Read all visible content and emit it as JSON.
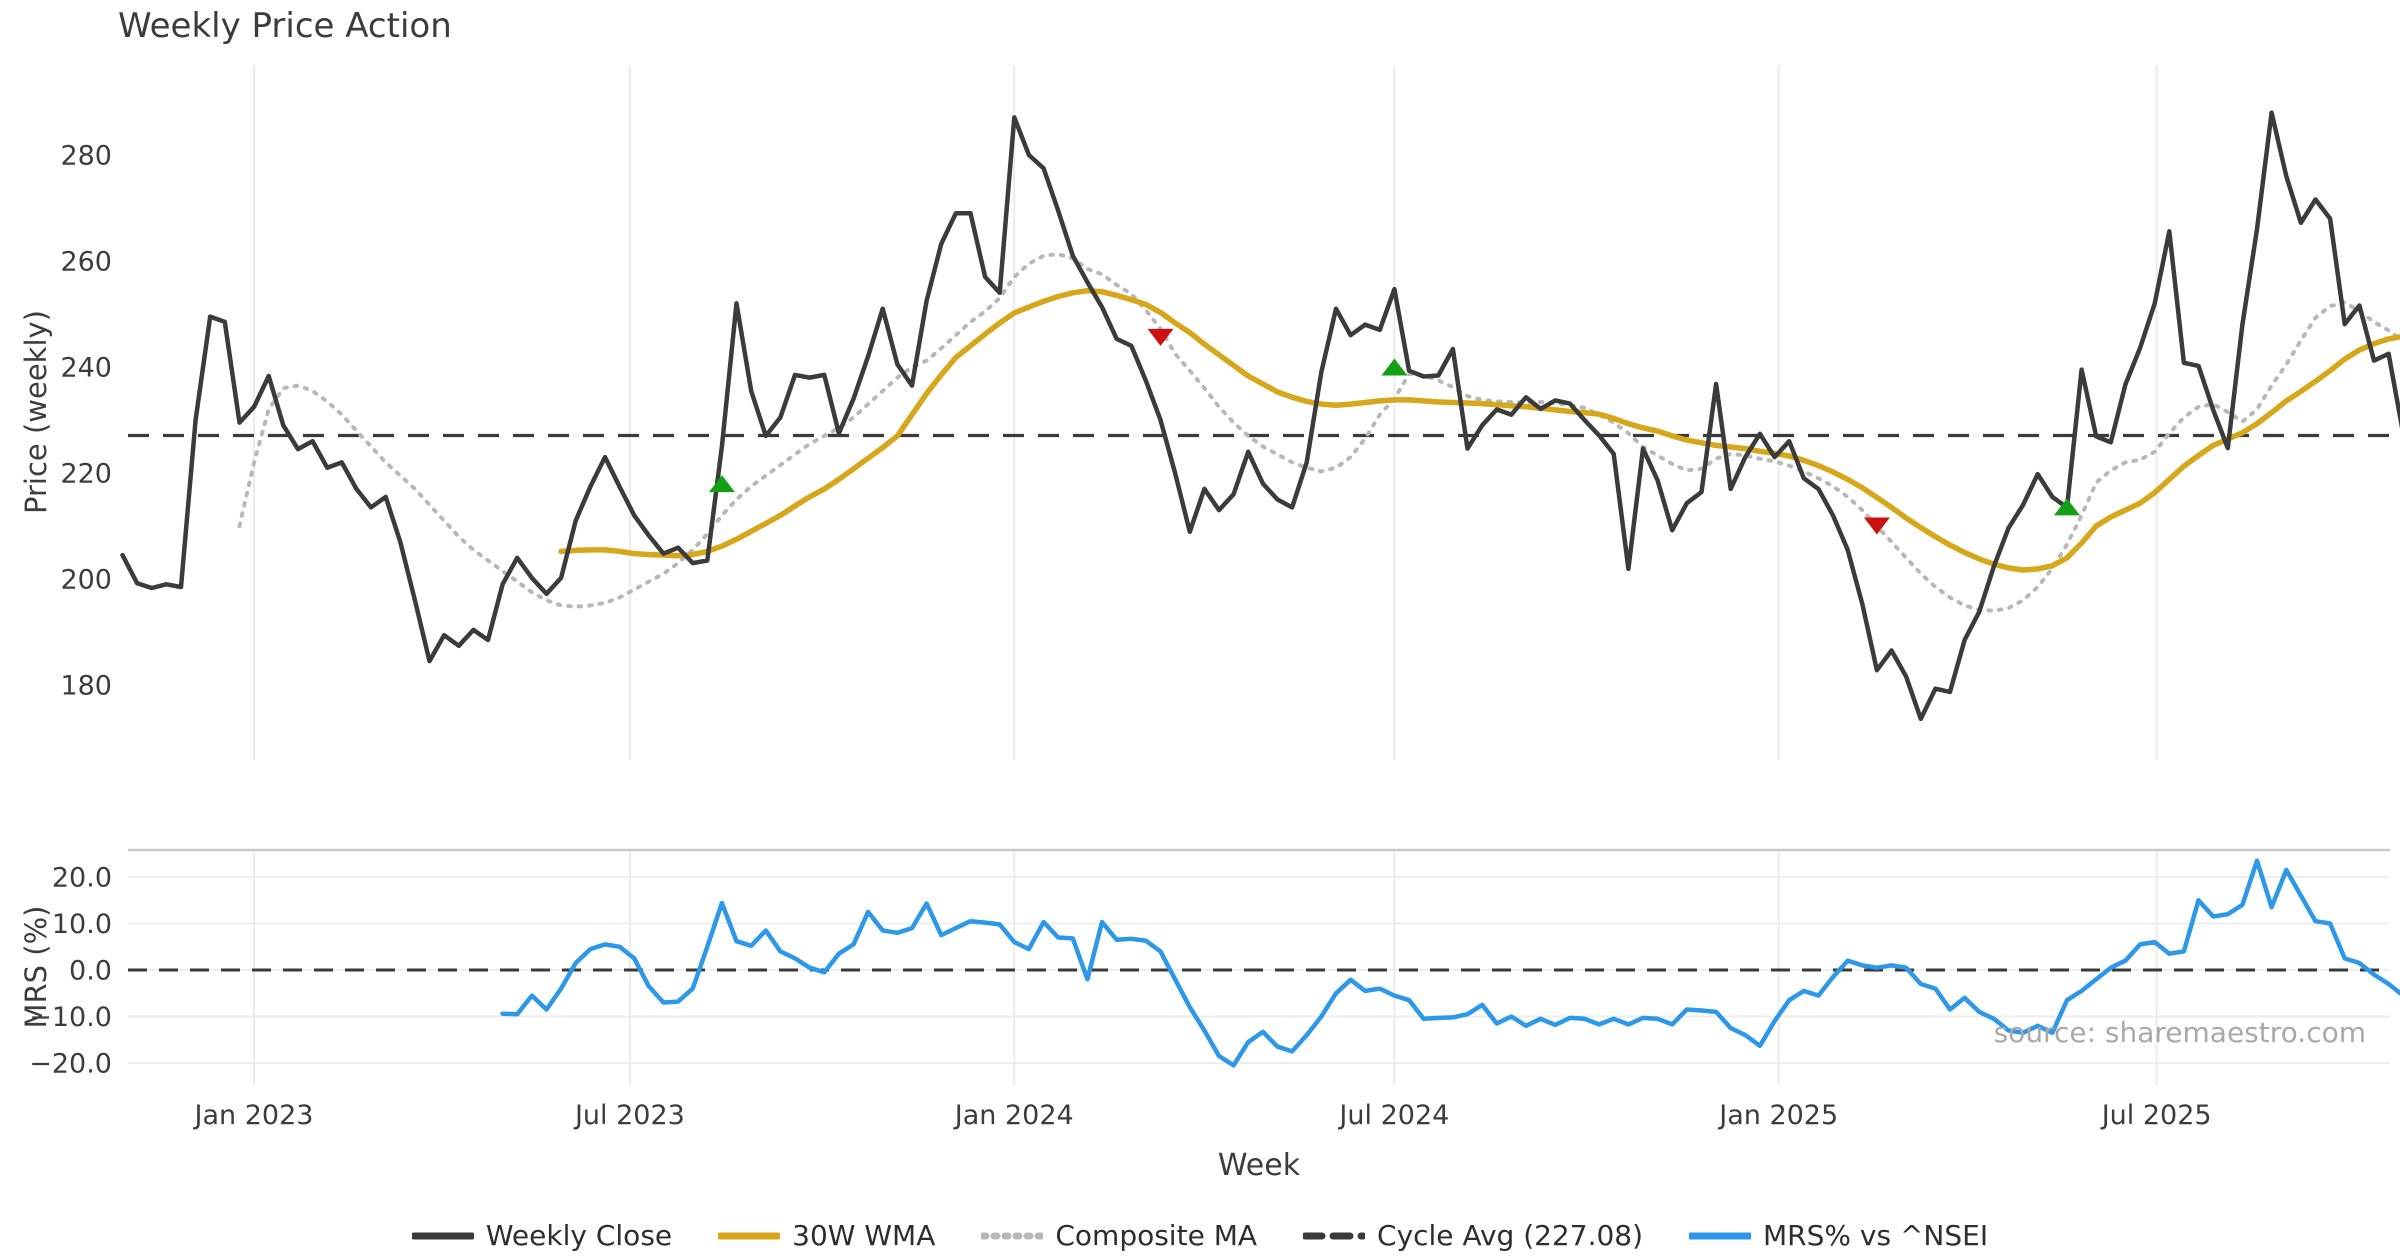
{
  "title": "Weekly Price Action",
  "source": "source: sharemaestro.com",
  "colors": {
    "close": "#3b3b3b",
    "wma": "#d6a61b",
    "composite": "#b8b8b8",
    "cycle": "#3a3a3a",
    "mrs": "#2d97e8",
    "buy": "#14a014",
    "sell": "#cc1111",
    "grid": "#ebebeb",
    "spine": "#c9c9c9",
    "tick": "#3c3c3c"
  },
  "axes": {
    "price": {
      "ylabel": "Price (weekly)",
      "yticks": [
        {
          "v": 180,
          "label": "180"
        },
        {
          "v": 200,
          "label": "200"
        },
        {
          "v": 220,
          "label": "220"
        },
        {
          "v": 240,
          "label": "240"
        },
        {
          "v": 260,
          "label": "260"
        },
        {
          "v": 280,
          "label": "280"
        }
      ]
    },
    "mrs": {
      "ylabel": "MRS (%)",
      "yticks": [
        {
          "v": 20,
          "label": "20.0"
        },
        {
          "v": 10,
          "label": "10.0"
        },
        {
          "v": 0,
          "label": "0.0"
        },
        {
          "v": -10,
          "label": "−10.0"
        },
        {
          "v": -20,
          "label": "−20.0"
        }
      ]
    },
    "x": {
      "label": "Week",
      "ticks": [
        {
          "label": "Jan 2023",
          "week": 0
        },
        {
          "label": "Jul 2023",
          "week": 25.71
        },
        {
          "label": "Jan 2024",
          "week": 52.0
        },
        {
          "label": "Jul 2024",
          "week": 78.0
        },
        {
          "label": "Jan 2025",
          "week": 104.29
        },
        {
          "label": "Jul 2025",
          "week": 130.14
        }
      ]
    }
  },
  "legend": [
    {
      "label": "Weekly Close",
      "swatch": "solid",
      "color": "#3b3b3b"
    },
    {
      "label": "30W WMA",
      "swatch": "solid",
      "color": "#d6a61b"
    },
    {
      "label": "Composite MA",
      "swatch": "dotted",
      "color": "#b8b8b8"
    },
    {
      "label": "Cycle Avg (227.08)",
      "swatch": "dashed",
      "color": "#3a3a3a"
    },
    {
      "label": "MRS% vs ^NSEI",
      "swatch": "solid",
      "color": "#2d97e8"
    }
  ],
  "chart_data": [
    {
      "type": "line",
      "panel": "price",
      "ylabel": "Price (weekly)",
      "ylim": [
        166,
        297
      ],
      "yticks": [
        180,
        200,
        220,
        240,
        260,
        280
      ],
      "x_axis": {
        "label": "Week",
        "start_date": "2022-10-31",
        "step_days": 7,
        "tick_labels": [
          "Jan 2023",
          "Jul 2023",
          "Jan 2024",
          "Jul 2024",
          "Jan 2025",
          "Jul 2025"
        ]
      },
      "cycle_avg": 227.08,
      "series": [
        {
          "name": "Weekly Close",
          "style": "solid",
          "color": "#3b3b3b",
          "start_index": 0,
          "values": [
            204.5,
            199.2,
            198.3,
            199.0,
            198.5,
            230.0,
            249.5,
            248.5,
            229.5,
            232.5,
            238.3,
            229.0,
            224.5,
            226.0,
            221.0,
            222.0,
            217.0,
            213.5,
            215.5,
            207.0,
            196.0,
            184.5,
            189.4,
            187.4,
            190.4,
            188.5,
            199.0,
            204.0,
            200.2,
            197.2,
            200.2,
            211.0,
            217.4,
            223.0,
            217.4,
            212.0,
            208.2,
            204.8,
            205.9,
            203.0,
            203.5,
            225.0,
            252.0,
            235.5,
            227.0,
            230.5,
            238.5,
            238.0,
            238.5,
            227.5,
            234.0,
            242.0,
            251.0,
            240.5,
            236.5,
            252.5,
            263.2,
            269.0,
            269.0,
            257.0,
            254.0,
            287.1,
            280.0,
            277.5,
            269.5,
            261.0,
            256.0,
            251.3,
            245.3,
            244.0,
            237.4,
            230.0,
            220.0,
            208.9,
            217.0,
            213.0,
            216.0,
            224.0,
            218.0,
            215.0,
            213.5,
            222.0,
            239.0,
            251.0,
            246.0,
            248.0,
            247.0,
            254.7,
            239.3,
            238.2,
            238.4,
            243.4,
            224.6,
            229.0,
            232.0,
            231.0,
            234.3,
            232.1,
            233.7,
            233.1,
            230.0,
            227.1,
            223.6,
            201.9,
            224.6,
            218.6,
            209.2,
            214.3,
            216.4,
            236.8,
            217.0,
            223.0,
            227.4,
            223.0,
            226.0,
            219.0,
            217.0,
            212.0,
            205.5,
            195.3,
            182.8,
            186.5,
            181.6,
            173.6,
            179.3,
            178.7,
            188.5,
            193.8,
            202.4,
            209.6,
            214.0,
            219.8,
            215.5,
            213.5,
            239.5,
            226.9,
            225.8,
            236.7,
            243.6,
            252.0,
            265.6,
            240.8,
            240.2,
            231.9,
            224.7,
            248.0,
            266.0,
            288.0,
            276.0,
            267.2,
            271.6,
            268.0,
            248.1,
            251.6,
            241.2,
            242.5,
            227.4
          ]
        },
        {
          "name": "30W WMA",
          "style": "solid",
          "color": "#d6a61b",
          "start_index": 30,
          "values": [
            205.2,
            205.4,
            205.5,
            205.5,
            205.2,
            204.8,
            204.6,
            204.5,
            204.4,
            204.6,
            205.2,
            206.2,
            207.5,
            209.0,
            210.5,
            212.0,
            213.8,
            215.5,
            217.0,
            218.8,
            220.8,
            222.8,
            224.8,
            227.0,
            231.0,
            235.0,
            238.5,
            241.8,
            244.0,
            246.2,
            248.3,
            250.2,
            251.3,
            252.4,
            253.3,
            254.0,
            254.4,
            254.2,
            253.5,
            252.7,
            251.8,
            250.3,
            248.3,
            246.5,
            244.3,
            242.3,
            240.3,
            238.3,
            236.8,
            235.3,
            234.3,
            233.5,
            233.0,
            232.8,
            233.0,
            233.3,
            233.6,
            233.8,
            233.8,
            233.6,
            233.4,
            233.3,
            233.2,
            233.1,
            232.9,
            232.7,
            232.5,
            232.2,
            231.9,
            231.6,
            231.4,
            231.1,
            230.3,
            229.3,
            228.5,
            227.9,
            227.0,
            226.2,
            225.7,
            225.2,
            224.9,
            224.6,
            224.1,
            223.7,
            223.2,
            222.4,
            221.4,
            220.2,
            218.8,
            217.2,
            215.4,
            213.5,
            211.5,
            209.7,
            208.0,
            206.4,
            205.0,
            203.8,
            202.8,
            202.1,
            201.7,
            201.9,
            202.5,
            204.0,
            206.8,
            210.0,
            211.7,
            213.0,
            214.3,
            216.3,
            218.8,
            221.3,
            223.3,
            225.2,
            226.4,
            227.6,
            229.3,
            231.4,
            233.6,
            235.4,
            237.3,
            239.3,
            241.5,
            243.2,
            244.4,
            245.3,
            245.8
          ]
        },
        {
          "name": "Composite MA",
          "style": "dotted",
          "color": "#b8b8b8",
          "start_index": 8,
          "values": [
            210.0,
            222.0,
            232.0,
            236.0,
            236.5,
            235.5,
            233.5,
            231.0,
            228.0,
            225.0,
            222.0,
            219.5,
            217.0,
            214.0,
            211.0,
            208.0,
            205.5,
            203.5,
            201.5,
            199.5,
            197.5,
            196.0,
            195.0,
            194.8,
            195.0,
            195.5,
            196.5,
            198.0,
            199.5,
            201.0,
            203.0,
            205.5,
            208.5,
            212.0,
            215.0,
            217.5,
            219.5,
            221.5,
            223.5,
            225.5,
            227.0,
            228.5,
            230.5,
            233.0,
            235.5,
            238.0,
            240.0,
            241.2,
            243.5,
            246.0,
            248.5,
            250.5,
            253.0,
            257.0,
            259.5,
            261.0,
            261.3,
            260.5,
            258.5,
            257.5,
            255.5,
            253.8,
            250.7,
            247.2,
            242.5,
            239.3,
            236.0,
            232.5,
            229.5,
            227.0,
            225.0,
            223.5,
            222.0,
            221.0,
            220.3,
            221.0,
            223.0,
            226.5,
            231.0,
            234.0,
            238.7,
            238.4,
            237.5,
            236.2,
            234.5,
            233.8,
            233.5,
            233.4,
            233.3,
            233.4,
            233.2,
            232.8,
            232.3,
            231.0,
            229.5,
            227.5,
            224.9,
            223.3,
            221.7,
            220.5,
            220.8,
            222.7,
            223.6,
            223.3,
            222.7,
            222.2,
            221.4,
            220.3,
            219.0,
            217.5,
            215.5,
            213.0,
            210.0,
            207.0,
            204.0,
            201.0,
            198.5,
            196.5,
            195.0,
            194.2,
            194.0,
            194.5,
            196.0,
            198.5,
            202.0,
            206.5,
            212.0,
            218.2,
            220.5,
            222.0,
            222.5,
            224.0,
            227.5,
            230.5,
            232.5,
            233.0,
            231.5,
            229.7,
            232.0,
            236.5,
            240.5,
            245.0,
            249.3,
            251.5,
            252.2,
            250.5,
            248.5,
            246.9,
            244.8,
            243.4
          ]
        },
        {
          "name": "Cycle Avg (227.08)",
          "style": "dashed",
          "color": "#3a3a3a",
          "constant": 227.08
        }
      ],
      "markers": [
        {
          "name": "buy-signal",
          "shape": "triangle-up",
          "color": "#14a014",
          "index": 41,
          "value": 218.0
        },
        {
          "name": "sell-signal",
          "shape": "triangle-down",
          "color": "#cc1111",
          "index": 71,
          "value": 245.6
        },
        {
          "name": "buy-signal",
          "shape": "triangle-up",
          "color": "#14a014",
          "index": 87,
          "value": 240.0
        },
        {
          "name": "sell-signal",
          "shape": "triangle-down",
          "color": "#cc1111",
          "index": 120,
          "value": 210.0
        },
        {
          "name": "buy-signal",
          "shape": "triangle-up",
          "color": "#14a014",
          "index": 133,
          "value": 213.6
        }
      ]
    },
    {
      "type": "line",
      "panel": "mrs",
      "ylabel": "MRS (%)",
      "ylim": [
        -24.7,
        25.8
      ],
      "yticks": [
        20,
        10,
        0,
        -10,
        -20
      ],
      "zero_line": true,
      "series": [
        {
          "name": "MRS% vs ^NSEI",
          "style": "solid",
          "color": "#2d97e8",
          "start_index": 26,
          "values": [
            -9.4,
            -9.5,
            -5.5,
            -8.5,
            -4.0,
            1.5,
            4.5,
            5.5,
            5.0,
            2.5,
            -3.5,
            -7.0,
            -6.8,
            -4.0,
            5.0,
            14.4,
            6.2,
            5.2,
            8.5,
            4.0,
            2.5,
            0.5,
            -0.5,
            3.5,
            5.5,
            12.5,
            8.5,
            8.0,
            9.0,
            14.3,
            7.5,
            9.0,
            10.5,
            10.2,
            9.8,
            6.0,
            4.5,
            10.3,
            7.0,
            6.8,
            -2.0,
            10.3,
            6.5,
            6.7,
            6.3,
            4.0,
            -2.0,
            -8.0,
            -13.0,
            -18.5,
            -20.5,
            -15.5,
            -13.3,
            -16.5,
            -17.5,
            -14.0,
            -10.0,
            -5.0,
            -2.1,
            -4.5,
            -4.0,
            -5.5,
            -6.5,
            -10.5,
            -10.3,
            -10.2,
            -9.5,
            -7.5,
            -11.5,
            -10.0,
            -12.0,
            -10.5,
            -11.8,
            -10.3,
            -10.5,
            -11.7,
            -10.5,
            -11.7,
            -10.3,
            -10.5,
            -11.7,
            -8.5,
            -8.7,
            -9.0,
            -12.5,
            -14.0,
            -16.3,
            -11.0,
            -6.5,
            -4.5,
            -5.5,
            -1.5,
            2.0,
            1.0,
            0.5,
            1.0,
            0.5,
            -3.0,
            -4.0,
            -8.5,
            -6.0,
            -9.0,
            -10.5,
            -13.0,
            -13.5,
            -12.0,
            -13.5,
            -6.5,
            -4.5,
            -2.0,
            0.5,
            2.0,
            5.5,
            6.0,
            3.5,
            4.0,
            15.0,
            11.5,
            12.0,
            14.0,
            23.5,
            13.5,
            21.5,
            16.0,
            10.5,
            10.0,
            2.5,
            1.5,
            -1.0,
            -3.0,
            -5.5
          ]
        }
      ]
    }
  ]
}
